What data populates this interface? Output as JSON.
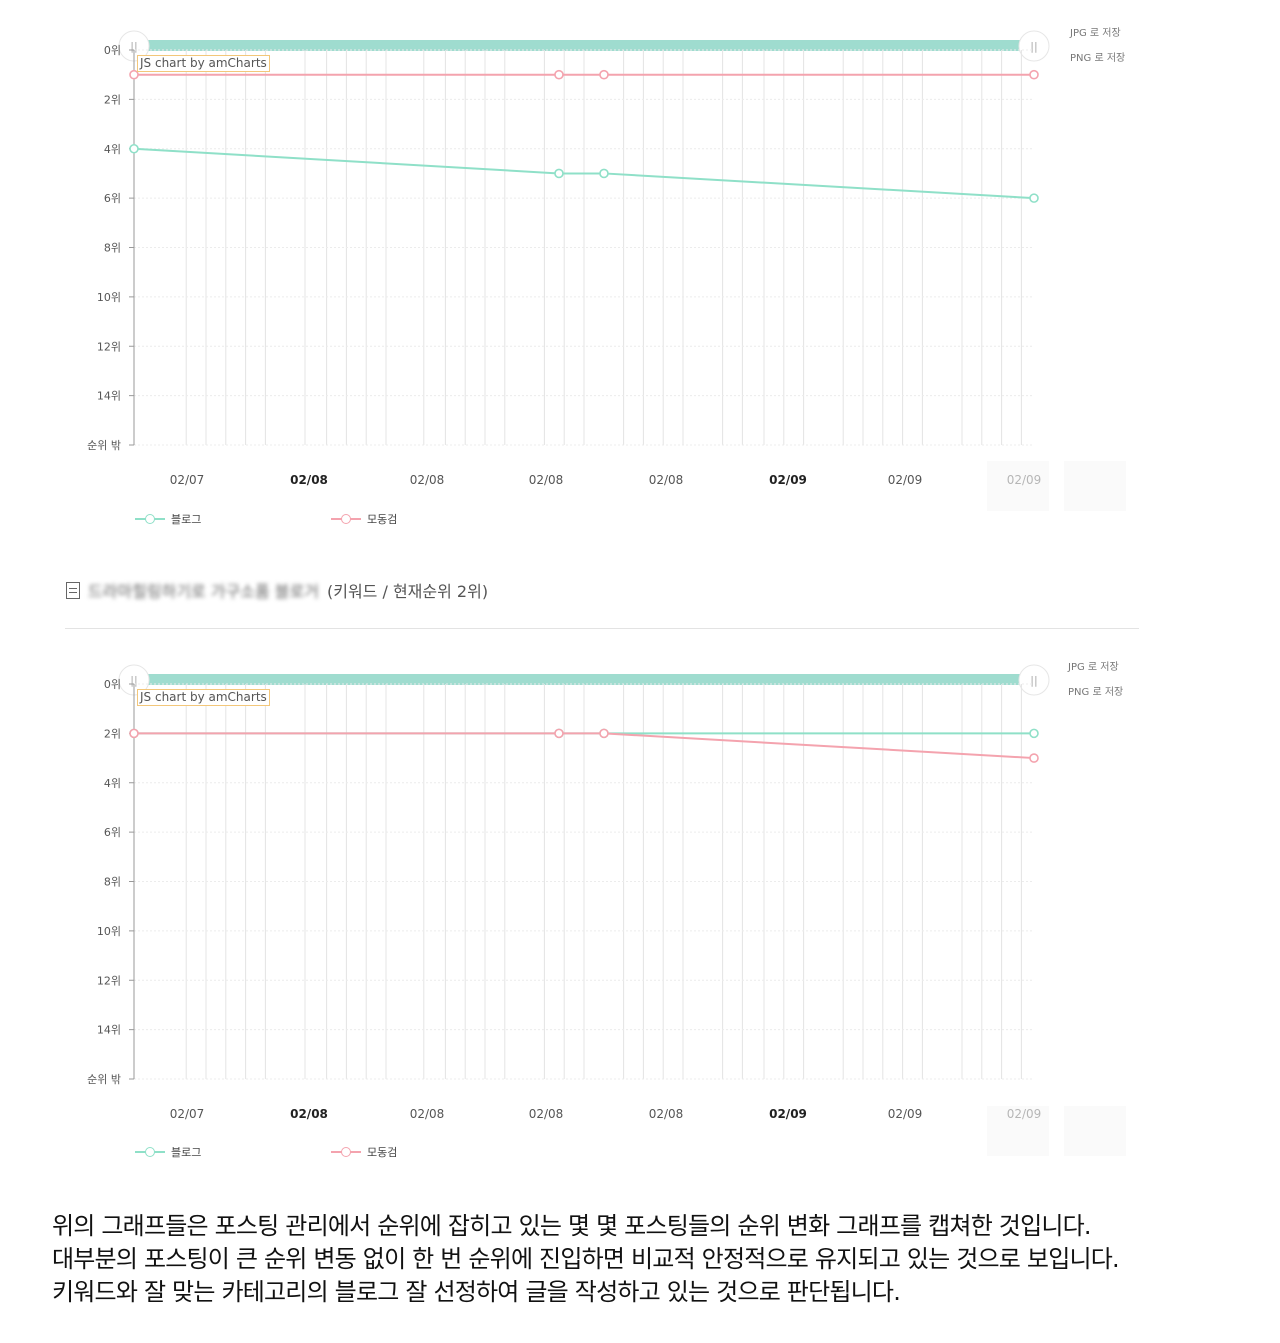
{
  "charts": [
    {
      "export": {
        "jpg": "JPG 로 저장",
        "png": "PNG 로 저장"
      },
      "credit": "JS chart by amCharts",
      "legend": [
        "블로그",
        "모동검"
      ]
    },
    {
      "export": {
        "jpg": "JPG 로 저장",
        "png": "PNG 로 저장"
      },
      "credit": "JS chart by amCharts",
      "legend": [
        "블로그",
        "모동검"
      ]
    }
  ],
  "post": {
    "title_blurred": "드라마힐링하기로 가구소품 블로거",
    "title_suffix": "(키워드 / 현재순위 2위)"
  },
  "summary": [
    "위의 그래프들은 포스팅 관리에서 순위에 잡히고 있는 몇 몇 포스팅들의 순위 변화 그래프를 캡쳐한 것입니다.",
    "대부분의 포스팅이 큰 순위 변동 없이 한 번 순위에 진입하면 비교적 안정적으로 유지되고 있는 것으로 보입니다.",
    "키워드와 잘 맞는 카테고리의 블로그 잘 선정하여 글을 작성하고 있는 것으로 판단됩니다."
  ],
  "chart_data": [
    {
      "type": "line",
      "y_ticks": [
        "0위",
        "2위",
        "4위",
        "6위",
        "8위",
        "10위",
        "12위",
        "14위",
        "순위 밖"
      ],
      "y_reversed": true,
      "ylim": [
        0,
        16
      ],
      "x_tick_labels": [
        {
          "label": "02/07",
          "bold": false
        },
        {
          "label": "02/08",
          "bold": true
        },
        {
          "label": "02/08",
          "bold": false
        },
        {
          "label": "02/08",
          "bold": false
        },
        {
          "label": "02/08",
          "bold": false
        },
        {
          "label": "02/09",
          "bold": true
        },
        {
          "label": "02/09",
          "bold": false
        },
        {
          "label": "02/09",
          "bold": false
        }
      ],
      "x_fraction": [
        0,
        0.4722,
        0.5222,
        1
      ],
      "series": [
        {
          "name": "블로그",
          "color": "#8fe0c8",
          "values": [
            4,
            5,
            5,
            6
          ]
        },
        {
          "name": "모동검",
          "color": "#f4a3ae",
          "values": [
            1,
            1,
            1,
            1
          ]
        }
      ],
      "grid": true,
      "legend_position": "bottom-left"
    },
    {
      "type": "line",
      "y_ticks": [
        "0위",
        "2위",
        "4위",
        "6위",
        "8위",
        "10위",
        "12위",
        "14위",
        "순위 밖"
      ],
      "y_reversed": true,
      "ylim": [
        0,
        16
      ],
      "x_tick_labels": [
        {
          "label": "02/07",
          "bold": false
        },
        {
          "label": "02/08",
          "bold": true
        },
        {
          "label": "02/08",
          "bold": false
        },
        {
          "label": "02/08",
          "bold": false
        },
        {
          "label": "02/08",
          "bold": false
        },
        {
          "label": "02/09",
          "bold": true
        },
        {
          "label": "02/09",
          "bold": false
        },
        {
          "label": "02/09",
          "bold": false
        }
      ],
      "x_fraction": [
        0,
        0.4722,
        0.5222,
        1
      ],
      "series": [
        {
          "name": "블로그",
          "color": "#8fe0c8",
          "values": [
            2,
            2,
            2,
            2
          ]
        },
        {
          "name": "모동검",
          "color": "#f4a3ae",
          "values": [
            2,
            2,
            2,
            3
          ]
        }
      ],
      "grid": true,
      "legend_position": "bottom-left"
    }
  ]
}
